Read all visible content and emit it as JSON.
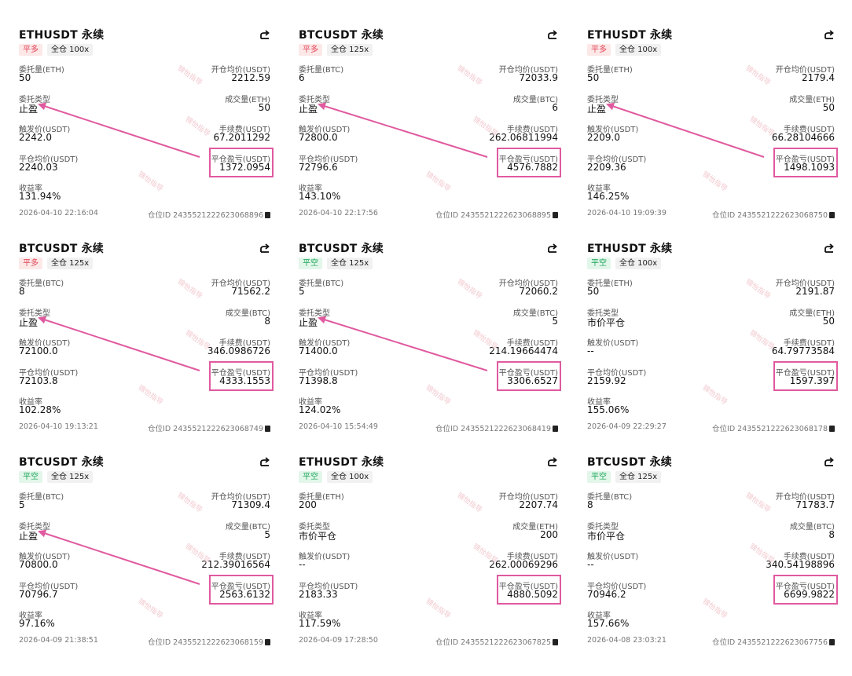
{
  "labels": {
    "qty_btc": "委托量(BTC)",
    "qty_eth": "委托量(ETH)",
    "open_avg": "开仓均价(USDT)",
    "order_type": "委托类型",
    "filled_btc": "成交量(BTC)",
    "filled_eth": "成交量(ETH)",
    "trigger": "触发价(USDT)",
    "fee": "手续费(USDT)",
    "close_avg": "平仓均价(USDT)",
    "pnl": "平仓盈亏(USDT)",
    "roi": "收益率",
    "pos_id": "仓位ID"
  },
  "watermark": "锦怡指导",
  "cards": [
    {
      "title": "ETHUSDT 永续",
      "side": "平多",
      "side_kind": "long",
      "margin": "全仓 100x",
      "qty_label": "委托量(ETH)",
      "qty": "50",
      "open_avg": "2212.59",
      "order_type": "止盈",
      "filled_label": "成交量(ETH)",
      "filled": "50",
      "trigger": "2242.0",
      "fee": "67.2011292",
      "close_avg": "2240.03",
      "pnl": "1372.0954",
      "roi": "131.94%",
      "time": "2026-04-10 22:16:04",
      "pos_id": "仓位ID 2435521222623068896",
      "arrow": true
    },
    {
      "title": "BTCUSDT 永续",
      "side": "平多",
      "side_kind": "long",
      "margin": "全仓 125x",
      "qty_label": "委托量(BTC)",
      "qty": "6",
      "open_avg": "72033.9",
      "order_type": "止盈",
      "filled_label": "成交量(BTC)",
      "filled": "6",
      "trigger": "72800.0",
      "fee": "262.06811994",
      "close_avg": "72796.6",
      "pnl": "4576.7882",
      "roi": "143.10%",
      "time": "2026-04-10 22:17:56",
      "pos_id": "仓位ID 2435521222623068895",
      "arrow": true
    },
    {
      "title": "ETHUSDT 永续",
      "side": "平多",
      "side_kind": "long",
      "margin": "全仓 100x",
      "qty_label": "委托量(ETH)",
      "qty": "50",
      "open_avg": "2179.4",
      "order_type": "止盈",
      "filled_label": "成交量(ETH)",
      "filled": "50",
      "trigger": "2209.0",
      "fee": "66.28104666",
      "close_avg": "2209.36",
      "pnl": "1498.1093",
      "roi": "146.25%",
      "time": "2026-04-10 19:09:39",
      "pos_id": "仓位ID 2435521222623068750",
      "arrow": true
    },
    {
      "title": "BTCUSDT 永续",
      "side": "平多",
      "side_kind": "long",
      "margin": "全仓 125x",
      "qty_label": "委托量(BTC)",
      "qty": "8",
      "open_avg": "71562.2",
      "order_type": "止盈",
      "filled_label": "成交量(BTC)",
      "filled": "8",
      "trigger": "72100.0",
      "fee": "346.0986726",
      "close_avg": "72103.8",
      "pnl": "4333.1553",
      "roi": "102.28%",
      "time": "2026-04-10 19:13:21",
      "pos_id": "仓位ID 2435521222623068749",
      "arrow": true
    },
    {
      "title": "BTCUSDT 永续",
      "side": "平空",
      "side_kind": "short",
      "margin": "全仓 125x",
      "qty_label": "委托量(BTC)",
      "qty": "5",
      "open_avg": "72060.2",
      "order_type": "止盈",
      "filled_label": "成交量(BTC)",
      "filled": "5",
      "trigger": "71400.0",
      "fee": "214.19664474",
      "close_avg": "71398.8",
      "pnl": "3306.6527",
      "roi": "124.02%",
      "time": "2026-04-10 15:54:49",
      "pos_id": "仓位ID 2435521222623068419",
      "arrow": true
    },
    {
      "title": "ETHUSDT 永续",
      "side": "平空",
      "side_kind": "short",
      "margin": "全仓 100x",
      "qty_label": "委托量(ETH)",
      "qty": "50",
      "open_avg": "2191.87",
      "order_type": "市价平仓",
      "filled_label": "成交量(ETH)",
      "filled": "50",
      "trigger": "--",
      "fee": "64.79773584",
      "close_avg": "2159.92",
      "pnl": "1597.397",
      "roi": "155.06%",
      "time": "2026-04-09 22:29:27",
      "pos_id": "仓位ID 2435521222623068178",
      "arrow": false
    },
    {
      "title": "BTCUSDT 永续",
      "side": "平空",
      "side_kind": "short",
      "margin": "全仓 125x",
      "qty_label": "委托量(BTC)",
      "qty": "5",
      "open_avg": "71309.4",
      "order_type": "止盈",
      "filled_label": "成交量(BTC)",
      "filled": "5",
      "trigger": "70800.0",
      "fee": "212.39016564",
      "close_avg": "70796.7",
      "pnl": "2563.6132",
      "roi": "97.16%",
      "time": "2026-04-09 21:38:51",
      "pos_id": "仓位ID 2435521222623068159",
      "arrow": true
    },
    {
      "title": "ETHUSDT 永续",
      "side": "平空",
      "side_kind": "short",
      "margin": "全仓 100x",
      "qty_label": "委托量(ETH)",
      "qty": "200",
      "open_avg": "2207.74",
      "order_type": "市价平仓",
      "filled_label": "成交量(ETH)",
      "filled": "200",
      "trigger": "--",
      "fee": "262.00069296",
      "close_avg": "2183.33",
      "pnl": "4880.5092",
      "roi": "117.59%",
      "time": "2026-04-09 17:28:50",
      "pos_id": "仓位ID 2435521222623067825",
      "arrow": false
    },
    {
      "title": "BTCUSDT 永续",
      "side": "平空",
      "side_kind": "short",
      "margin": "全仓 125x",
      "qty_label": "委托量(BTC)",
      "qty": "8",
      "open_avg": "71783.7",
      "order_type": "市价平仓",
      "filled_label": "成交量(BTC)",
      "filled": "8",
      "trigger": "--",
      "fee": "340.54198896",
      "close_avg": "70946.2",
      "pnl": "6699.9822",
      "roi": "157.66%",
      "time": "2026-04-08 23:03:21",
      "pos_id": "仓位ID 2435521222623067756",
      "arrow": false
    }
  ]
}
